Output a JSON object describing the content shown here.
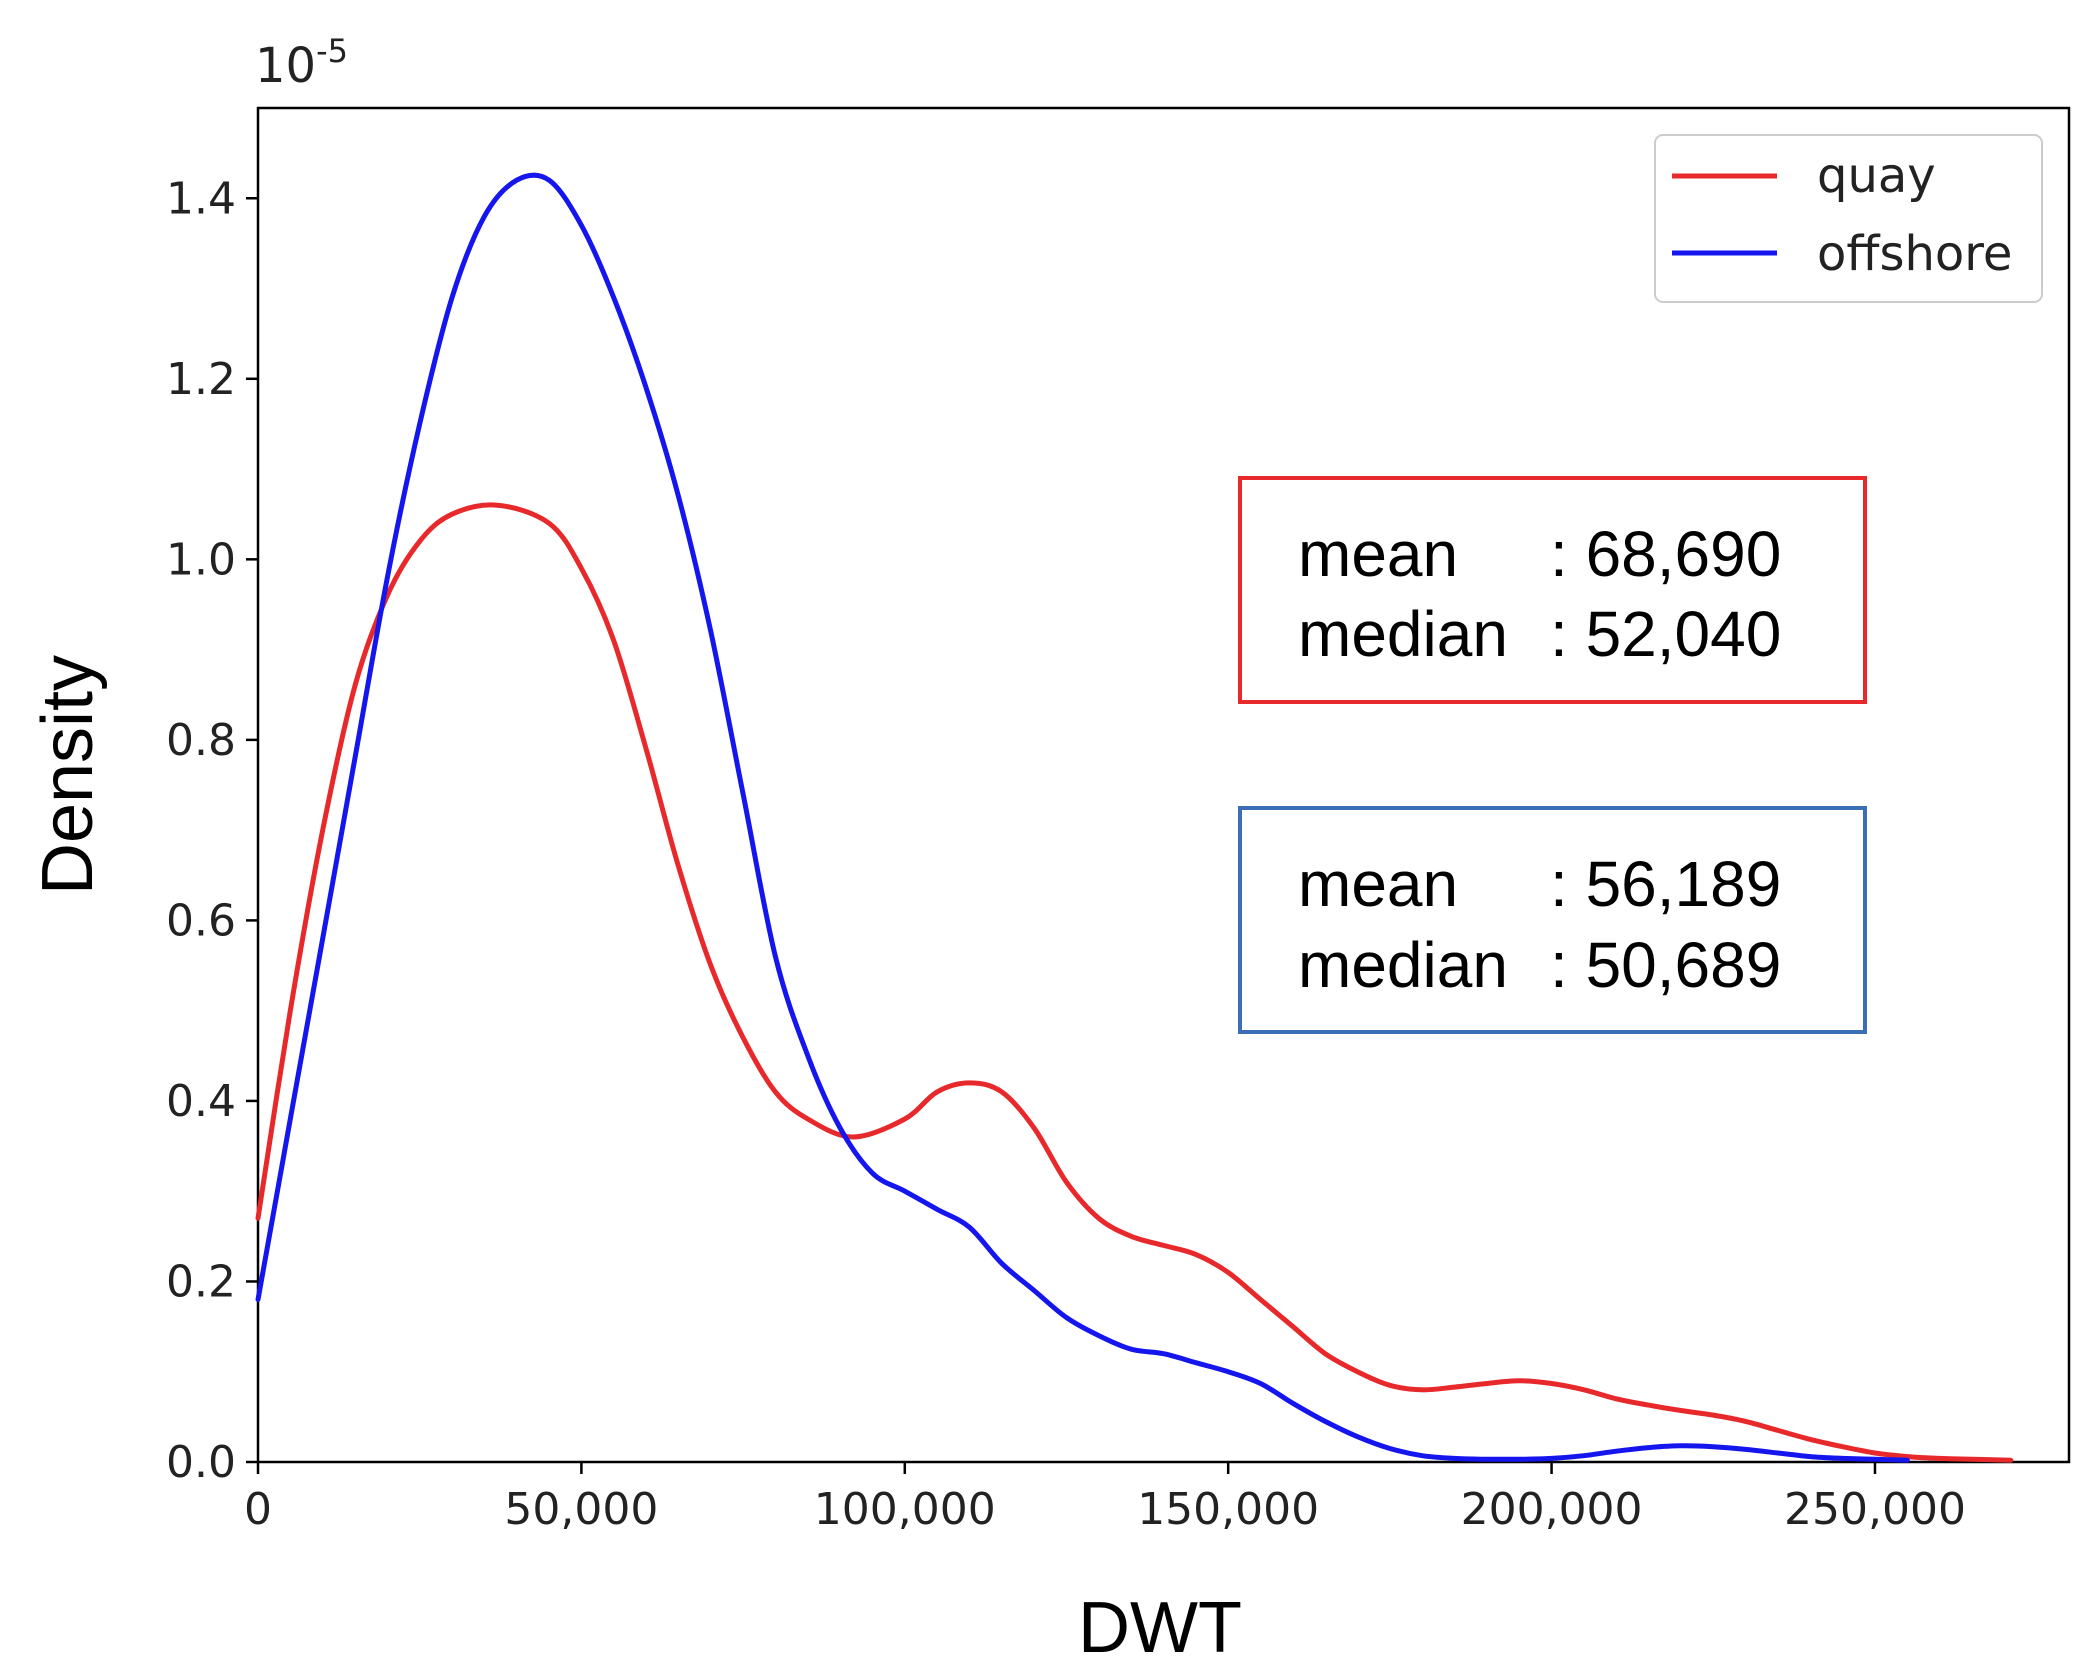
{
  "chart_data": {
    "type": "line",
    "title": "",
    "xlabel": "DWT",
    "ylabel": "Density",
    "y_multiplier": {
      "base": "10",
      "exponent": "-5"
    },
    "xlim": [
      0,
      280000
    ],
    "ylim": [
      0,
      1.5
    ],
    "x_ticks": [
      0,
      50000,
      100000,
      150000,
      200000,
      250000
    ],
    "x_tick_labels": [
      "0",
      "50,000",
      "100,000",
      "150,000",
      "200,000",
      "250,000"
    ],
    "y_ticks": [
      0.0,
      0.2,
      0.4,
      0.6,
      0.8,
      1.0,
      1.2,
      1.4
    ],
    "y_tick_labels": [
      "0.0",
      "0.2",
      "0.4",
      "0.6",
      "0.8",
      "1.0",
      "1.2",
      "1.4"
    ],
    "grid": false,
    "legend_position": "top-right",
    "series": [
      {
        "name": "quay",
        "color": "#e8292b",
        "points": [
          [
            0,
            0.27
          ],
          [
            5000,
            0.5
          ],
          [
            10000,
            0.7
          ],
          [
            15000,
            0.86
          ],
          [
            20000,
            0.96
          ],
          [
            25000,
            1.02
          ],
          [
            30000,
            1.05
          ],
          [
            37000,
            1.06
          ],
          [
            45000,
            1.04
          ],
          [
            50000,
            0.99
          ],
          [
            55000,
            0.91
          ],
          [
            60000,
            0.79
          ],
          [
            65000,
            0.66
          ],
          [
            70000,
            0.55
          ],
          [
            75000,
            0.47
          ],
          [
            80000,
            0.41
          ],
          [
            85000,
            0.38
          ],
          [
            92000,
            0.36
          ],
          [
            100000,
            0.38
          ],
          [
            105000,
            0.41
          ],
          [
            110000,
            0.42
          ],
          [
            115000,
            0.41
          ],
          [
            120000,
            0.37
          ],
          [
            125000,
            0.31
          ],
          [
            130000,
            0.27
          ],
          [
            135000,
            0.25
          ],
          [
            140000,
            0.24
          ],
          [
            145000,
            0.23
          ],
          [
            150000,
            0.21
          ],
          [
            155000,
            0.18
          ],
          [
            160000,
            0.15
          ],
          [
            165000,
            0.12
          ],
          [
            170000,
            0.1
          ],
          [
            175000,
            0.085
          ],
          [
            180000,
            0.08
          ],
          [
            185000,
            0.083
          ],
          [
            190000,
            0.087
          ],
          [
            195000,
            0.09
          ],
          [
            200000,
            0.087
          ],
          [
            205000,
            0.08
          ],
          [
            210000,
            0.07
          ],
          [
            215000,
            0.063
          ],
          [
            220000,
            0.057
          ],
          [
            225000,
            0.052
          ],
          [
            230000,
            0.045
          ],
          [
            235000,
            0.035
          ],
          [
            240000,
            0.025
          ],
          [
            245000,
            0.017
          ],
          [
            250000,
            0.01
          ],
          [
            255000,
            0.006
          ],
          [
            260000,
            0.004
          ],
          [
            265000,
            0.003
          ],
          [
            271000,
            0.002
          ]
        ]
      },
      {
        "name": "offshore",
        "color": "#1515ee",
        "points": [
          [
            0,
            0.18
          ],
          [
            5000,
            0.38
          ],
          [
            10000,
            0.58
          ],
          [
            15000,
            0.78
          ],
          [
            20000,
            0.98
          ],
          [
            25000,
            1.15
          ],
          [
            30000,
            1.29
          ],
          [
            35000,
            1.38
          ],
          [
            40000,
            1.42
          ],
          [
            45000,
            1.42
          ],
          [
            50000,
            1.37
          ],
          [
            55000,
            1.29
          ],
          [
            60000,
            1.19
          ],
          [
            65000,
            1.07
          ],
          [
            70000,
            0.92
          ],
          [
            75000,
            0.74
          ],
          [
            80000,
            0.56
          ],
          [
            85000,
            0.45
          ],
          [
            90000,
            0.37
          ],
          [
            95000,
            0.32
          ],
          [
            100000,
            0.3
          ],
          [
            105000,
            0.28
          ],
          [
            110000,
            0.26
          ],
          [
            115000,
            0.22
          ],
          [
            120000,
            0.19
          ],
          [
            125000,
            0.16
          ],
          [
            130000,
            0.14
          ],
          [
            135000,
            0.125
          ],
          [
            140000,
            0.12
          ],
          [
            145000,
            0.11
          ],
          [
            150000,
            0.1
          ],
          [
            155000,
            0.087
          ],
          [
            160000,
            0.065
          ],
          [
            165000,
            0.045
          ],
          [
            170000,
            0.028
          ],
          [
            175000,
            0.015
          ],
          [
            180000,
            0.007
          ],
          [
            185000,
            0.004
          ],
          [
            190000,
            0.003
          ],
          [
            195000,
            0.003
          ],
          [
            200000,
            0.004
          ],
          [
            205000,
            0.007
          ],
          [
            210000,
            0.012
          ],
          [
            215000,
            0.016
          ],
          [
            220000,
            0.018
          ],
          [
            225000,
            0.017
          ],
          [
            230000,
            0.014
          ],
          [
            235000,
            0.01
          ],
          [
            240000,
            0.006
          ],
          [
            245000,
            0.004
          ],
          [
            250000,
            0.003
          ],
          [
            255000,
            0.002
          ]
        ]
      }
    ],
    "annotations": [
      {
        "series": "quay",
        "box_color": "#e8292b",
        "mean_label": "mean",
        "mean_value": ": 68,690",
        "median_label": "median",
        "median_value": ": 52,040"
      },
      {
        "series": "offshore",
        "box_color": "#3a6fb5",
        "mean_label": "mean",
        "mean_value": ": 56,189",
        "median_label": "median",
        "median_value": ": 50,689"
      }
    ]
  }
}
